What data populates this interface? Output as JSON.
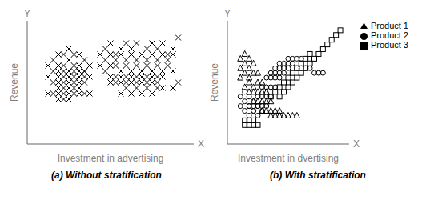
{
  "chart_data": [
    {
      "type": "scatter",
      "title": "(a) Without stratification",
      "xlabel": "Investment in advertising",
      "ylabel": "Revenue",
      "annotations": [
        "X",
        "Y"
      ],
      "xlim": [
        0,
        16
      ],
      "ylim": [
        0,
        11
      ],
      "tick_labels": false,
      "grid": false,
      "series": [
        {
          "color": "black",
          "marker": "x",
          "x": [
            2,
            2.5,
            3,
            3,
            3.5,
            3.5,
            4,
            4,
            4.5,
            4.5,
            5,
            5,
            5.5,
            5.5,
            6,
            6,
            2,
            2.5,
            3,
            3,
            3.5,
            3.5,
            4,
            4,
            4.5,
            4.5,
            5,
            5,
            5.5,
            5.5,
            2.5,
            3,
            3.5,
            4,
            4.5,
            5,
            5.5,
            3,
            3.5,
            4,
            4.5,
            5,
            2,
            2.5,
            3,
            3.5,
            4,
            4.5,
            5,
            5.5,
            6,
            3,
            3.5,
            4
          ],
          "y": [
            7,
            7.5,
            8,
            7,
            8,
            7,
            8.5,
            7.5,
            8,
            7,
            8,
            7,
            7.5,
            6.5,
            7,
            6,
            6,
            6.5,
            6,
            6.5,
            6,
            6.5,
            6,
            6.5,
            6,
            6.5,
            6,
            6.5,
            6,
            6.5,
            5.5,
            5.5,
            5.5,
            5.5,
            5.5,
            5.5,
            5.5,
            5,
            5,
            5,
            5,
            5,
            4.5,
            4.5,
            4.5,
            4.5,
            4.5,
            4.5,
            4.5,
            4.5,
            4.5,
            4,
            4,
            4
          ]
        },
        {
          "color": "black",
          "marker": "x",
          "x": [
            7,
            7.5,
            8,
            8.5,
            9,
            9.5,
            10,
            10.5,
            11,
            11.5,
            12,
            12.5,
            13,
            13.5,
            14,
            14.5,
            7,
            7.5,
            8,
            8.5,
            9,
            9.5,
            10,
            10.5,
            11,
            11.5,
            12,
            12.5,
            13,
            13.5,
            14,
            7.5,
            8,
            8.5,
            9,
            9.5,
            10,
            10.5,
            11,
            11.5,
            12,
            12.5,
            13,
            13.5,
            14,
            8,
            8.5,
            9,
            9.5,
            10,
            10.5,
            11,
            11.5,
            12,
            12.5,
            13,
            8,
            8.5,
            9,
            9.5,
            10,
            10.5,
            11,
            11.5,
            12,
            12.5,
            9,
            9.5,
            10,
            10.5,
            11,
            11.5,
            12,
            12.5,
            13,
            14,
            14.5
          ],
          "y": [
            8,
            8.5,
            9,
            8,
            8.5,
            9,
            8.5,
            9,
            8,
            8.5,
            9,
            8.5,
            9,
            8,
            8.5,
            9.5,
            7,
            7.5,
            8,
            7.5,
            8,
            7.5,
            8,
            7.5,
            8,
            7.5,
            8,
            7.5,
            8,
            7.5,
            8,
            6.5,
            7,
            7,
            6.5,
            7,
            6.5,
            7,
            6.5,
            7,
            6.5,
            7,
            6.5,
            7,
            6.5,
            6,
            6,
            6,
            6,
            6,
            6,
            6,
            6,
            6,
            6,
            6,
            5.5,
            5.5,
            5.5,
            5.5,
            5.5,
            5.5,
            5.5,
            5.5,
            5.5,
            5.5,
            4.5,
            5,
            4.5,
            5,
            4.5,
            5,
            4.5,
            5,
            5,
            5,
            5.5
          ]
        }
      ]
    },
    {
      "type": "scatter",
      "title": "(b) With stratification",
      "xlabel": "Investment in dvertising",
      "ylabel": "Revenue",
      "annotations": [
        "X",
        "Y"
      ],
      "xlim": [
        0,
        14
      ],
      "ylim": [
        0,
        13
      ],
      "tick_labels": false,
      "grid": false,
      "legend": "upper right",
      "series": [
        {
          "name": "Product 1",
          "color": "black",
          "marker": "triangle",
          "x": [
            1.5,
            2,
            2.5,
            1.5,
            2,
            2.5,
            3,
            1.5,
            2,
            2.5,
            3,
            3.5,
            2,
            2.5,
            3,
            3.5,
            4,
            2.5,
            3,
            3.5,
            4,
            4.5,
            3,
            3.5,
            4,
            4.5,
            5,
            4,
            4.5,
            5,
            5.5,
            6,
            5,
            5.5,
            6,
            6.5,
            7,
            7.5,
            8
          ],
          "y": [
            9,
            9.5,
            9,
            8,
            8.5,
            8,
            8.5,
            7,
            7.5,
            7,
            7.5,
            7.5,
            6,
            6.5,
            6,
            6.5,
            6.5,
            5.5,
            5.5,
            5.5,
            5.5,
            5.5,
            4.5,
            4.5,
            4.5,
            4.5,
            4.5,
            3.5,
            3.5,
            3.5,
            3.5,
            3.5,
            3,
            3,
            3,
            3,
            3,
            3,
            3
          ]
        },
        {
          "name": "Product 2",
          "color": "black",
          "marker": "circle",
          "x": [
            1.5,
            2,
            2.5,
            1.5,
            2,
            2.5,
            3,
            2,
            2.5,
            3,
            3.5,
            2.5,
            3,
            3.5,
            4,
            3,
            3.5,
            4,
            4.5,
            3.5,
            4,
            4.5,
            5,
            4,
            4.5,
            5,
            5.5,
            4.5,
            5,
            5.5,
            6,
            5,
            5.5,
            6,
            6.5,
            5.5,
            6,
            6.5,
            7,
            6,
            6.5,
            7,
            7.5,
            7,
            7.5,
            8,
            8.5,
            8,
            8.5,
            9,
            9.5,
            10,
            10.5,
            11
          ],
          "y": [
            5,
            5.5,
            5,
            4,
            4.5,
            4,
            4.5,
            3.5,
            4,
            3.5,
            4,
            3,
            3.5,
            3,
            3.5,
            4,
            4,
            4,
            4,
            5,
            5,
            5,
            5,
            6,
            6,
            6,
            6,
            7,
            7,
            7,
            7,
            7.5,
            7.5,
            7.5,
            7.5,
            8,
            8,
            8,
            8,
            8.5,
            8.5,
            8.5,
            8.5,
            9,
            9,
            9,
            9,
            8,
            8,
            8,
            8,
            7.5,
            7.5,
            7.5
          ]
        },
        {
          "name": "Product 3",
          "color": "black",
          "marker": "square",
          "x": [
            2,
            2.5,
            3,
            2,
            2.5,
            3,
            3.5,
            5,
            5.5,
            6,
            6.5,
            6,
            6.5,
            7,
            7.5,
            7,
            7.5,
            8,
            8.5,
            8,
            8.5,
            9,
            9.5,
            9,
            9.5,
            10,
            10.5,
            11,
            11.5,
            12,
            12.5,
            13
          ],
          "y": [
            2.5,
            2.5,
            2.5,
            2,
            2,
            2,
            2,
            5,
            5.5,
            5,
            5.5,
            6,
            6.5,
            6,
            6.5,
            7,
            7.5,
            7,
            7.5,
            8,
            8.5,
            8,
            8.5,
            9,
            9.5,
            9,
            9.5,
            10,
            10.5,
            11,
            11.5,
            12
          ]
        }
      ]
    }
  ]
}
